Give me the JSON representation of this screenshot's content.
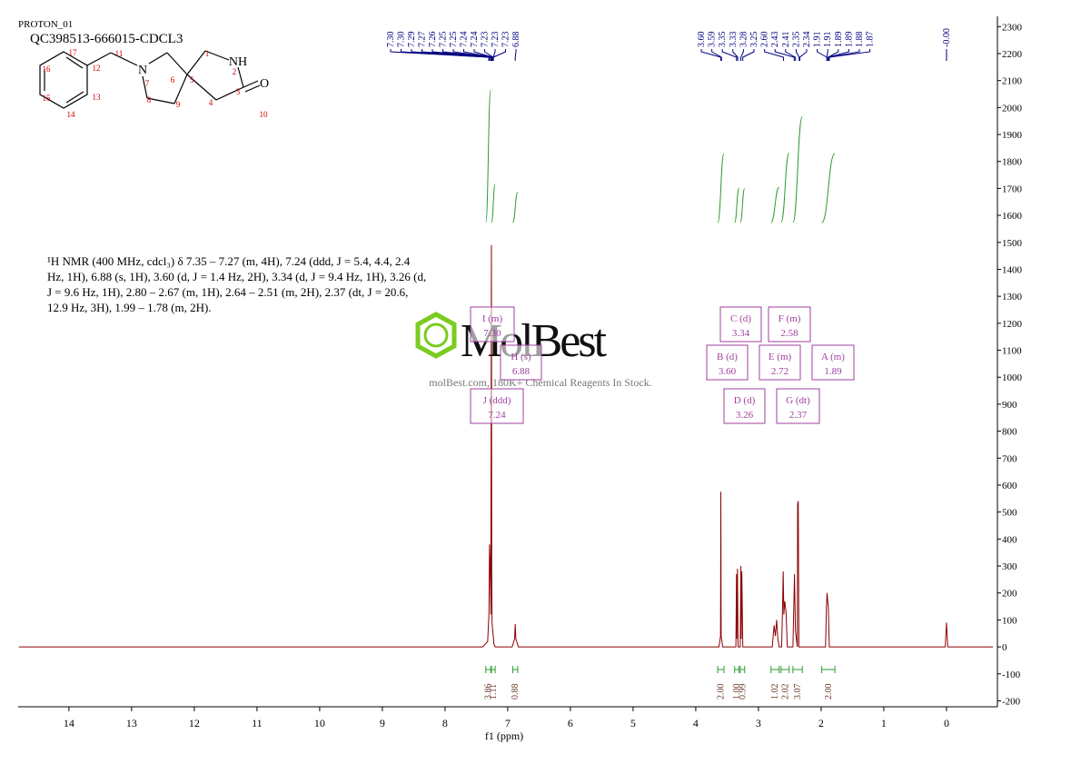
{
  "chart_data": {
    "type": "line",
    "title": "PROTON_01",
    "subtitle": "QC398513-666015-CDCL3",
    "x_label": "f1 (ppm)",
    "xlim": [
      14.81,
      -0.74
    ],
    "xticks": [
      14,
      13,
      12,
      11,
      10,
      9,
      8,
      7,
      6,
      5,
      4,
      3,
      2,
      1,
      0
    ],
    "ylim": [
      -222,
      2338
    ],
    "yticks": [
      -200,
      -100,
      0,
      100,
      200,
      300,
      400,
      500,
      600,
      700,
      800,
      900,
      1000,
      1100,
      1200,
      1300,
      1400,
      1500,
      1600,
      1700,
      1800,
      1900,
      2000,
      2100,
      2200,
      2300
    ],
    "y_axis_side": "right",
    "grid": false,
    "color": "#8b0000",
    "x": [
      14.8,
      7.4,
      7.32,
      7.3,
      7.29,
      7.28,
      7.27,
      7.26,
      7.255,
      7.25,
      7.24,
      7.23,
      7.22,
      7.2,
      6.93,
      6.89,
      6.88,
      6.87,
      6.83,
      3.63,
      3.605,
      3.6,
      3.595,
      3.57,
      3.36,
      3.35,
      3.345,
      3.335,
      3.325,
      3.29,
      3.28,
      3.275,
      3.265,
      3.25,
      2.78,
      2.75,
      2.73,
      2.71,
      2.69,
      2.67,
      2.63,
      2.615,
      2.605,
      2.595,
      2.58,
      2.56,
      2.54,
      2.45,
      2.435,
      2.425,
      2.41,
      2.38,
      2.375,
      2.365,
      2.355,
      2.33,
      1.93,
      1.915,
      1.905,
      1.895,
      1.885,
      1.87,
      0.02,
      0.0,
      -0.02,
      -0.74
    ],
    "values": [
      0,
      0,
      20,
      120,
      380,
      300,
      120,
      1490,
      300,
      90,
      60,
      40,
      10,
      0,
      0,
      30,
      85,
      30,
      0,
      0,
      40,
      575,
      40,
      0,
      0,
      270,
      30,
      290,
      0,
      0,
      300,
      30,
      280,
      0,
      0,
      80,
      40,
      100,
      30,
      0,
      0,
      150,
      280,
      120,
      170,
      130,
      0,
      0,
      160,
      270,
      60,
      0,
      530,
      540,
      0,
      0,
      0,
      150,
      200,
      170,
      150,
      0,
      0,
      90,
      0,
      0
    ],
    "peak_picks": {
      "values": [
        7.3,
        7.3,
        7.29,
        7.27,
        7.26,
        7.25,
        7.25,
        7.24,
        7.24,
        7.23,
        7.23,
        7.23,
        6.88,
        3.6,
        3.59,
        3.35,
        3.33,
        3.28,
        3.25,
        2.6,
        2.43,
        2.41,
        2.35,
        2.34,
        1.91,
        1.91,
        1.89,
        1.89,
        1.88,
        1.87,
        0.0
      ],
      "value_labels": [
        "7.30",
        "7.30",
        "7.29",
        "7.27",
        "7.26",
        "7.25",
        "7.25",
        "7.24",
        "7.24",
        "7.23",
        "7.23",
        "7.23",
        "6.88",
        "3.60",
        "3.59",
        "3.35",
        "3.33",
        "3.28",
        "3.25",
        "2.60",
        "2.43",
        "2.41",
        "2.35",
        "2.34",
        "1.91",
        "1.91",
        "1.89",
        "1.89",
        "1.88",
        "1.87",
        "-0.00"
      ],
      "color": "#000080"
    },
    "integrals": {
      "ranges": [
        [
          7.35,
          7.27
        ],
        [
          7.26,
          7.2
        ],
        [
          6.92,
          6.84
        ],
        [
          3.65,
          3.55
        ],
        [
          3.38,
          3.31
        ],
        [
          3.29,
          3.22
        ],
        [
          2.8,
          2.67
        ],
        [
          2.64,
          2.51
        ],
        [
          2.45,
          2.3
        ],
        [
          1.99,
          1.78
        ]
      ],
      "values": [
        3.86,
        1.11,
        0.88,
        2.0,
        1.0,
        0.99,
        1.02,
        2.02,
        3.07,
        2.0
      ],
      "value_labels": [
        "3.86",
        "1.11",
        "0.88",
        "2.00",
        "1.00",
        "0.99",
        "1.02",
        "2.02",
        "3.07",
        "2.00"
      ],
      "color": "#2e9b2e"
    },
    "multiplets": [
      {
        "label": "I (m)",
        "shift": "7.30"
      },
      {
        "label": "H (s)",
        "shift": "6.88"
      },
      {
        "label": "J (ddd)",
        "shift": "7.24"
      },
      {
        "label": "C (d)",
        "shift": "3.34"
      },
      {
        "label": "F (m)",
        "shift": "2.58"
      },
      {
        "label": "B (d)",
        "shift": "3.60"
      },
      {
        "label": "E (m)",
        "shift": "2.72"
      },
      {
        "label": "A (m)",
        "shift": "1.89"
      },
      {
        "label": "D (d)",
        "shift": "3.26"
      },
      {
        "label": "G (dt)",
        "shift": "2.37"
      }
    ],
    "multiplet_color": "#a040a0"
  },
  "description": "¹H NMR (400 MHz, cdcl₃) δ 7.35 – 7.27 (m, 4H), 7.24 (ddd, J = 5.4, 4.4, 2.4 Hz, 1H), 6.88 (s, 1H), 3.60 (d, J = 1.4 Hz, 2H), 3.34 (d, J = 9.4 Hz, 1H), 3.26 (d, J = 9.6 Hz, 1H), 2.80 – 2.67 (m, 1H), 2.64 – 2.51 (m, 2H), 2.37 (dt, J = 20.6, 12.9 Hz, 3H), 1.99 – 1.78 (m, 2H).",
  "structure": {
    "atoms": [
      "N",
      "NH",
      "O"
    ],
    "numbers": [
      1,
      2,
      3,
      4,
      5,
      6,
      7,
      8,
      9,
      10,
      11,
      12,
      13,
      14,
      15,
      16,
      17
    ]
  },
  "watermark": {
    "brand": "MolBest",
    "tagline": "molBest.com, 180K+ Chemical Reagents In Stock."
  }
}
